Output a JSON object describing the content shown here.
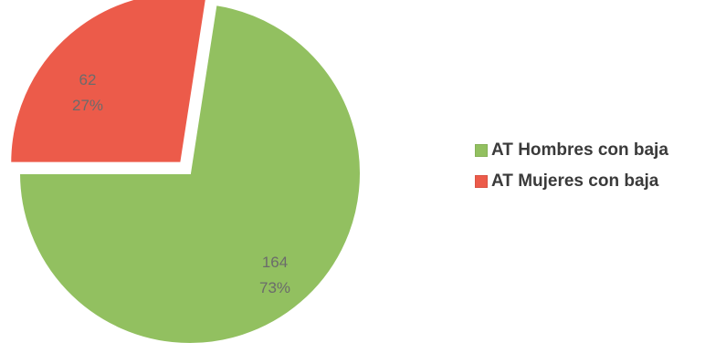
{
  "chart_data": {
    "type": "pie",
    "slices": [
      {
        "label": "AT Hombres con baja",
        "value": 164,
        "percent": "73%",
        "color": "#92c060"
      },
      {
        "label": "AT Mujeres con baja",
        "value": 62,
        "percent": "27%",
        "color": "#ec5b4a"
      }
    ],
    "exploded_slice": "AT Mujeres con baja",
    "legend_position": "right",
    "title": ""
  }
}
